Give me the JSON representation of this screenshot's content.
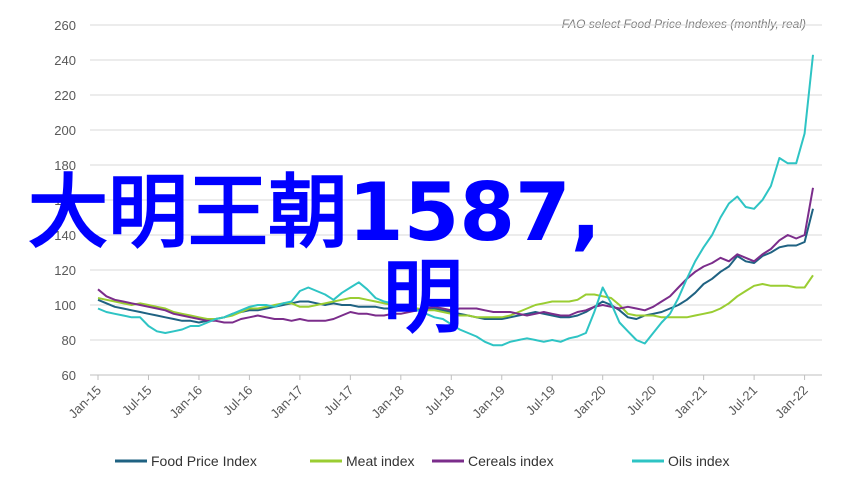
{
  "chart_data": {
    "type": "line",
    "annotation": "FAO select Food Price Indexes (monthly, real)",
    "overlay_text": [
      "大明王朝1587,",
      "明"
    ],
    "categories": [
      "Jan-15",
      null,
      null,
      null,
      null,
      null,
      "Jul-15",
      null,
      null,
      null,
      null,
      null,
      "Jan-16",
      null,
      null,
      null,
      null,
      null,
      "Jul-16",
      null,
      null,
      null,
      null,
      null,
      "Jan-17",
      null,
      null,
      null,
      null,
      null,
      "Jul-17",
      null,
      null,
      null,
      null,
      null,
      "Jan-18",
      null,
      null,
      null,
      null,
      null,
      "Jul-18",
      null,
      null,
      null,
      null,
      null,
      "Jan-19",
      null,
      null,
      null,
      null,
      null,
      "Jul-19",
      null,
      null,
      null,
      null,
      null,
      "Jan-20",
      null,
      null,
      null,
      null,
      null,
      "Jul-20",
      null,
      null,
      null,
      null,
      null,
      "Jan-21",
      null,
      null,
      null,
      null,
      null,
      "Jul-21",
      null,
      null,
      null,
      null,
      null,
      "Jan-22",
      null
    ],
    "series": [
      {
        "name": "Food Price Index",
        "color": "#1f6282",
        "values": [
          103,
          101,
          99,
          98,
          97,
          96,
          95,
          94,
          93,
          92,
          91,
          91,
          90,
          91,
          92,
          93,
          95,
          96,
          97,
          97,
          98,
          99,
          100,
          101,
          102,
          102,
          101,
          100,
          101,
          100,
          100,
          99,
          99,
          99,
          98,
          98,
          97,
          97,
          97,
          97,
          98,
          97,
          96,
          95,
          94,
          93,
          92,
          92,
          92,
          93,
          94,
          95,
          96,
          95,
          94,
          93,
          93,
          94,
          96,
          99,
          102,
          100,
          97,
          93,
          92,
          94,
          95,
          96,
          98,
          100,
          103,
          107,
          112,
          115,
          119,
          122,
          128,
          125,
          124,
          128,
          130,
          133,
          134,
          134,
          136,
          155
        ]
      },
      {
        "name": "Meat index",
        "color": "#9acd32",
        "values": [
          104,
          103,
          102,
          101,
          100,
          101,
          100,
          99,
          98,
          96,
          95,
          94,
          93,
          92,
          92,
          93,
          94,
          96,
          98,
          98,
          99,
          100,
          101,
          101,
          99,
          99,
          100,
          101,
          102,
          103,
          104,
          104,
          103,
          102,
          101,
          100,
          99,
          98,
          98,
          97,
          97,
          96,
          95,
          94,
          94,
          93,
          93,
          93,
          93,
          94,
          96,
          98,
          100,
          101,
          102,
          102,
          102,
          103,
          106,
          106,
          105,
          104,
          100,
          95,
          94,
          94,
          94,
          93,
          93,
          93,
          93,
          94,
          95,
          96,
          98,
          101,
          105,
          108,
          111,
          112,
          111,
          111,
          111,
          110,
          110,
          117
        ]
      },
      {
        "name": "Cereals index",
        "color": "#7b2d8b",
        "values": [
          109,
          105,
          103,
          102,
          101,
          100,
          99,
          98,
          97,
          95,
          94,
          93,
          92,
          91,
          91,
          90,
          90,
          92,
          93,
          94,
          93,
          92,
          92,
          91,
          92,
          91,
          91,
          91,
          92,
          94,
          96,
          95,
          95,
          94,
          94,
          95,
          95,
          96,
          97,
          98,
          99,
          98,
          97,
          98,
          98,
          98,
          97,
          96,
          96,
          96,
          95,
          94,
          95,
          96,
          95,
          94,
          94,
          96,
          97,
          99,
          100,
          99,
          98,
          99,
          98,
          97,
          99,
          102,
          105,
          110,
          115,
          119,
          122,
          124,
          127,
          125,
          129,
          127,
          125,
          129,
          132,
          137,
          140,
          138,
          140,
          167
        ]
      },
      {
        "name": "Oils index",
        "color": "#2ec4c4",
        "values": [
          98,
          96,
          95,
          94,
          93,
          93,
          88,
          85,
          84,
          85,
          86,
          88,
          88,
          90,
          92,
          93,
          95,
          97,
          99,
          100,
          100,
          99,
          101,
          102,
          108,
          110,
          108,
          106,
          103,
          107,
          110,
          113,
          109,
          104,
          102,
          101,
          98,
          97,
          97,
          95,
          93,
          92,
          89,
          86,
          84,
          82,
          79,
          77,
          77,
          79,
          80,
          81,
          80,
          79,
          80,
          79,
          81,
          82,
          84,
          96,
          110,
          101,
          90,
          85,
          80,
          78,
          84,
          90,
          95,
          104,
          115,
          125,
          133,
          140,
          150,
          158,
          162,
          156,
          155,
          160,
          168,
          184,
          181,
          181,
          198,
          243
        ]
      }
    ],
    "ylim": [
      60,
      260
    ],
    "yticks": [
      60,
      80,
      100,
      120,
      140,
      160,
      180,
      200,
      220,
      240,
      260
    ],
    "grid": true,
    "legend": "bottom"
  }
}
